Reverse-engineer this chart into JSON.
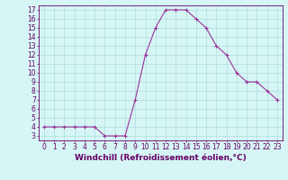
{
  "x": [
    0,
    1,
    2,
    3,
    4,
    5,
    6,
    7,
    8,
    9,
    10,
    11,
    12,
    13,
    14,
    15,
    16,
    17,
    18,
    19,
    20,
    21,
    22,
    23
  ],
  "y": [
    4,
    4,
    4,
    4,
    4,
    4,
    3,
    3,
    3,
    7,
    12,
    15,
    17,
    17,
    17,
    16,
    15,
    13,
    12,
    10,
    9,
    9,
    8,
    7
  ],
  "line_color": "#993399",
  "marker": "+",
  "marker_size": 3.5,
  "marker_lw": 0.8,
  "bg_color": "#d6f5f5",
  "grid_color": "#b0dede",
  "xlabel": "Windchill (Refroidissement éolien,°C)",
  "ylabel": "",
  "xlim": [
    -0.5,
    23.5
  ],
  "ylim": [
    2.5,
    17.5
  ],
  "yticks": [
    3,
    4,
    5,
    6,
    7,
    8,
    9,
    10,
    11,
    12,
    13,
    14,
    15,
    16,
    17
  ],
  "xticks": [
    0,
    1,
    2,
    3,
    4,
    5,
    6,
    7,
    8,
    9,
    10,
    11,
    12,
    13,
    14,
    15,
    16,
    17,
    18,
    19,
    20,
    21,
    22,
    23
  ],
  "tick_fontsize": 5.5,
  "xlabel_fontsize": 6.5,
  "axis_color": "#660066",
  "linewidth": 0.8
}
